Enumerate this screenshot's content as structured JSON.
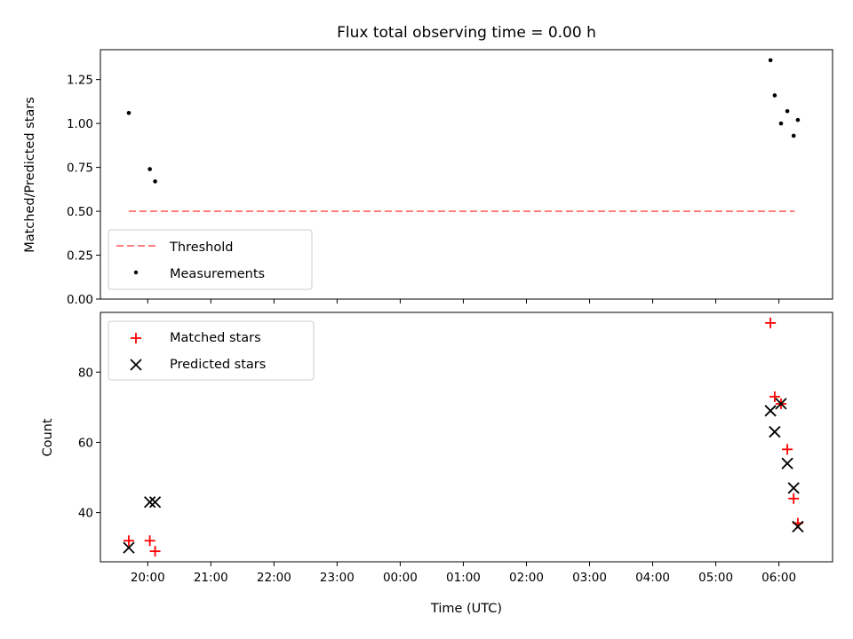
{
  "chart_data": [
    {
      "type": "scatter",
      "title": "Flux total observing time = 0.00 h",
      "xlabel": "",
      "ylabel": "Matched/Predicted stars",
      "ylim": [
        0.0,
        1.42
      ],
      "yticks": [
        "0.00",
        "0.25",
        "0.50",
        "0.75",
        "1.00",
        "1.25"
      ],
      "grid": false,
      "legend_position": "lower-left",
      "series": [
        {
          "name": "Threshold",
          "style": "dashed-line",
          "color": "#ff7f7f",
          "x": [
            "19:42",
            "06:15"
          ],
          "y": [
            0.5,
            0.5
          ]
        },
        {
          "name": "Measurements",
          "style": "dot",
          "color": "#000000",
          "x": [
            "19:42",
            "20:02",
            "20:07",
            "05:52",
            "05:56",
            "06:02",
            "06:08",
            "06:14",
            "06:18"
          ],
          "y": [
            1.06,
            0.74,
            0.67,
            1.36,
            1.16,
            1.0,
            1.07,
            0.93,
            1.02
          ]
        }
      ]
    },
    {
      "type": "scatter",
      "title": "",
      "xlabel": "Time (UTC)",
      "ylabel": "Count",
      "ylim": [
        26.0,
        97.0
      ],
      "yticks": [
        "40",
        "60",
        "80"
      ],
      "xticks": [
        "20:00",
        "21:00",
        "22:00",
        "23:00",
        "00:00",
        "01:00",
        "02:00",
        "03:00",
        "04:00",
        "05:00",
        "06:00"
      ],
      "grid": false,
      "legend_position": "upper-left",
      "series": [
        {
          "name": "Matched stars",
          "marker": "plus",
          "color": "#ff0000",
          "x": [
            "19:42",
            "20:02",
            "20:07",
            "05:52",
            "05:56",
            "06:02",
            "06:08",
            "06:14",
            "06:18"
          ],
          "y": [
            32,
            32,
            29,
            94,
            73,
            71,
            58,
            44,
            37
          ]
        },
        {
          "name": "Predicted stars",
          "marker": "x",
          "color": "#000000",
          "x": [
            "19:42",
            "20:02",
            "20:07",
            "05:52",
            "05:56",
            "06:02",
            "06:08",
            "06:14",
            "06:18"
          ],
          "y": [
            30,
            43,
            43,
            69,
            63,
            71,
            54,
            47,
            36
          ]
        }
      ]
    }
  ]
}
